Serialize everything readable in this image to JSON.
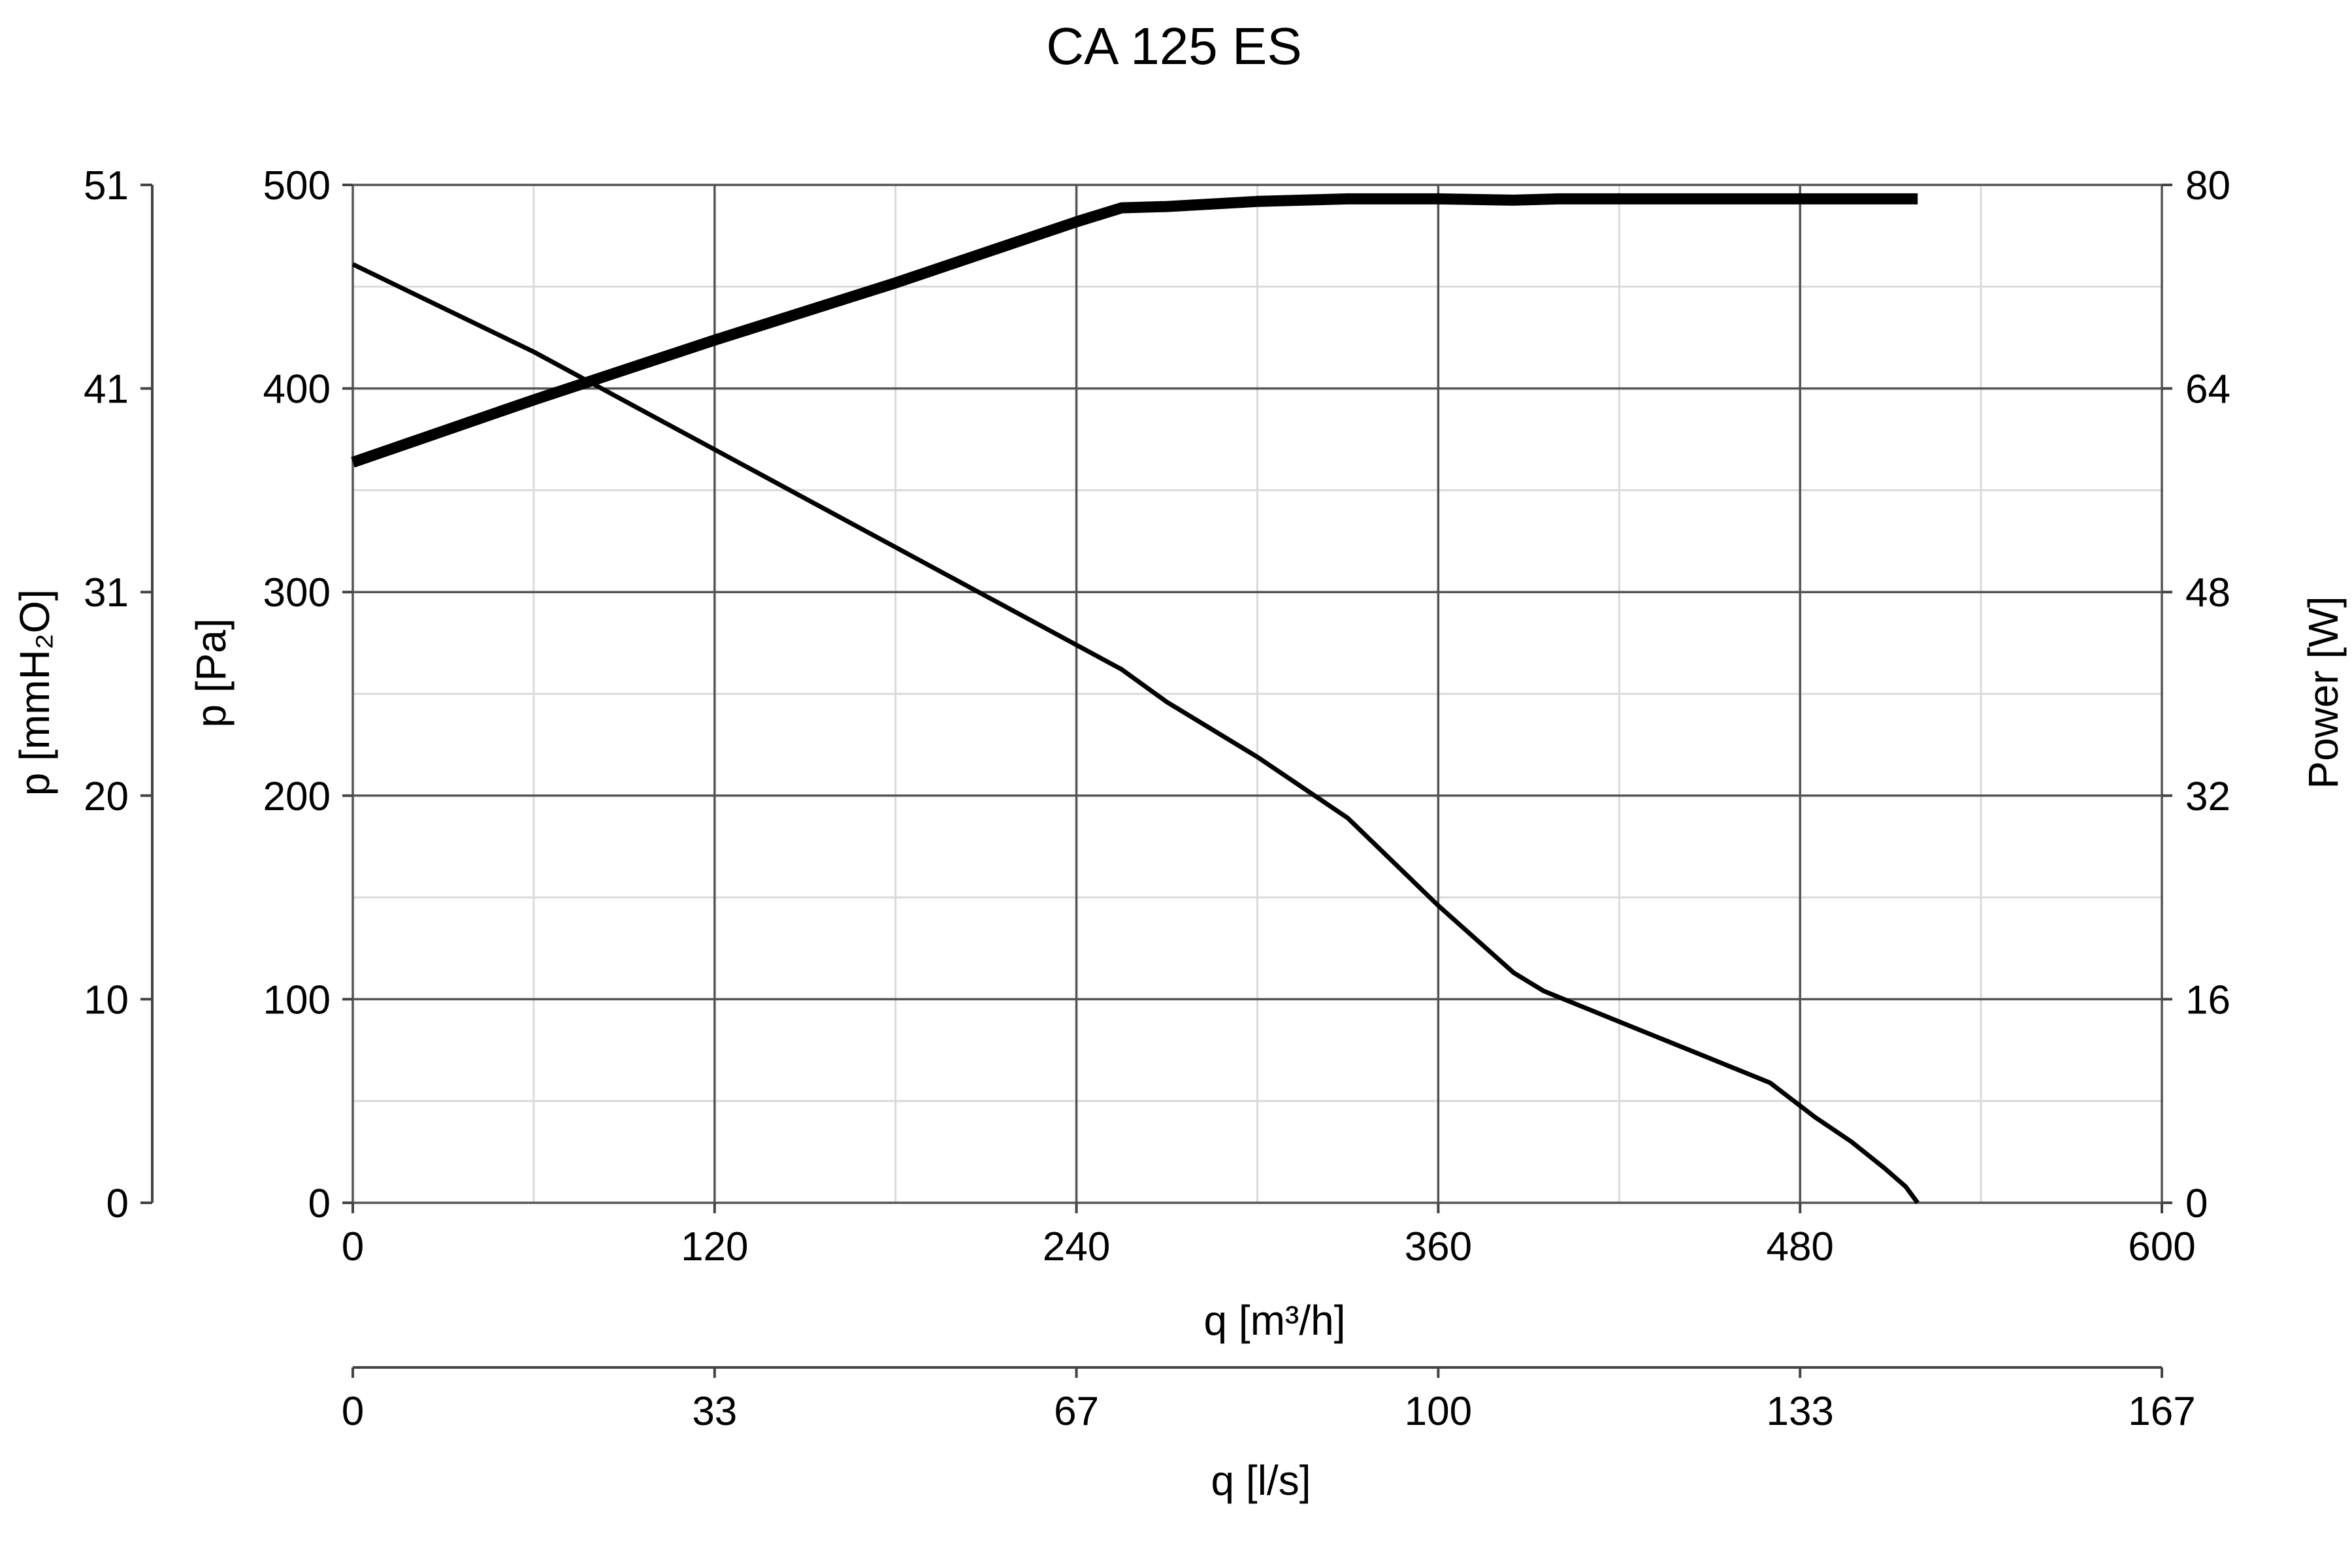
{
  "chart_data": {
    "type": "line",
    "title": "CA 125 ES",
    "axes": {
      "x_bottom": {
        "label": "q [m³/h]",
        "range": [
          0,
          600
        ],
        "ticks": [
          "0",
          "120",
          "240",
          "360",
          "480",
          "600"
        ]
      },
      "x_secondary": {
        "label": "q [l/s]",
        "range": [
          0,
          167
        ],
        "ticks": [
          "0",
          "33",
          "67",
          "100",
          "133",
          "167"
        ]
      },
      "y_left": {
        "label": "p [Pa]",
        "range": [
          0,
          500
        ],
        "ticks": [
          "0",
          "100",
          "200",
          "300",
          "400",
          "500"
        ]
      },
      "y_far_left": {
        "label": "p [mmH₂O]",
        "range": [
          0,
          51
        ],
        "ticks": [
          "0",
          "10",
          "20",
          "31",
          "41",
          "51"
        ]
      },
      "y_right": {
        "label": "Power [W]",
        "range": [
          0,
          80
        ],
        "ticks": [
          "0",
          "16",
          "32",
          "48",
          "64",
          "80"
        ]
      }
    },
    "grid": true,
    "series": [
      {
        "axis": "y_left",
        "points": [
          [
            0,
            461
          ],
          [
            60,
            418
          ],
          [
            120,
            370
          ],
          [
            180,
            322
          ],
          [
            210,
            298
          ],
          [
            240,
            274
          ],
          [
            255,
            262
          ],
          [
            270,
            246
          ],
          [
            300,
            219
          ],
          [
            330,
            189
          ],
          [
            360,
            146
          ],
          [
            385,
            113
          ],
          [
            395,
            104
          ],
          [
            420,
            89
          ],
          [
            450,
            71
          ],
          [
            470,
            59
          ],
          [
            485,
            42
          ],
          [
            497,
            30
          ],
          [
            508,
            17
          ],
          [
            515,
            8
          ],
          [
            519,
            0
          ]
        ]
      },
      {
        "axis": "y_right",
        "points": [
          [
            0,
            58.2
          ],
          [
            60,
            63.1
          ],
          [
            120,
            67.8
          ],
          [
            180,
            72.3
          ],
          [
            240,
            77.1
          ],
          [
            255,
            78.2
          ],
          [
            270,
            78.3
          ],
          [
            300,
            78.7
          ],
          [
            330,
            78.9
          ],
          [
            360,
            78.9
          ],
          [
            385,
            78.8
          ],
          [
            400,
            78.9
          ],
          [
            450,
            78.9
          ],
          [
            519,
            78.9
          ]
        ]
      }
    ]
  }
}
